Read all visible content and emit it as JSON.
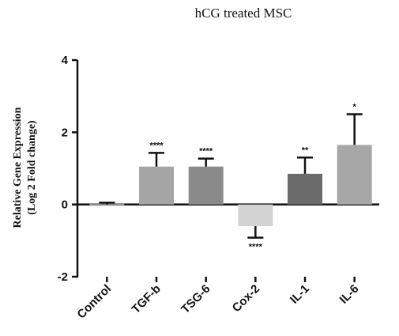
{
  "chart_data": {
    "type": "bar",
    "title": "hCG treated MSC",
    "ylabel_line1": "Relative Gene Expression",
    "ylabel_line2": "(Log 2 Fold change)",
    "xlabel": "",
    "ylim": [
      -2,
      4
    ],
    "yticks": [
      -2,
      0,
      2,
      4
    ],
    "grid": false,
    "categories": [
      "Control",
      "TGF-b",
      "TSG-6",
      "Cox-2",
      "IL-1",
      "IL-6"
    ],
    "values": [
      0.0,
      1.05,
      1.05,
      -0.6,
      0.85,
      1.65
    ],
    "errors": [
      0.05,
      0.38,
      0.22,
      0.32,
      0.45,
      0.85
    ],
    "significance": [
      "",
      "****",
      "****",
      "****",
      "**",
      "*"
    ],
    "bar_colors": [
      "#8c8c8c",
      "#a5a5a5",
      "#8a8a8a",
      "#d3d3d3",
      "#6b6b6b",
      "#a7a7a7"
    ]
  }
}
